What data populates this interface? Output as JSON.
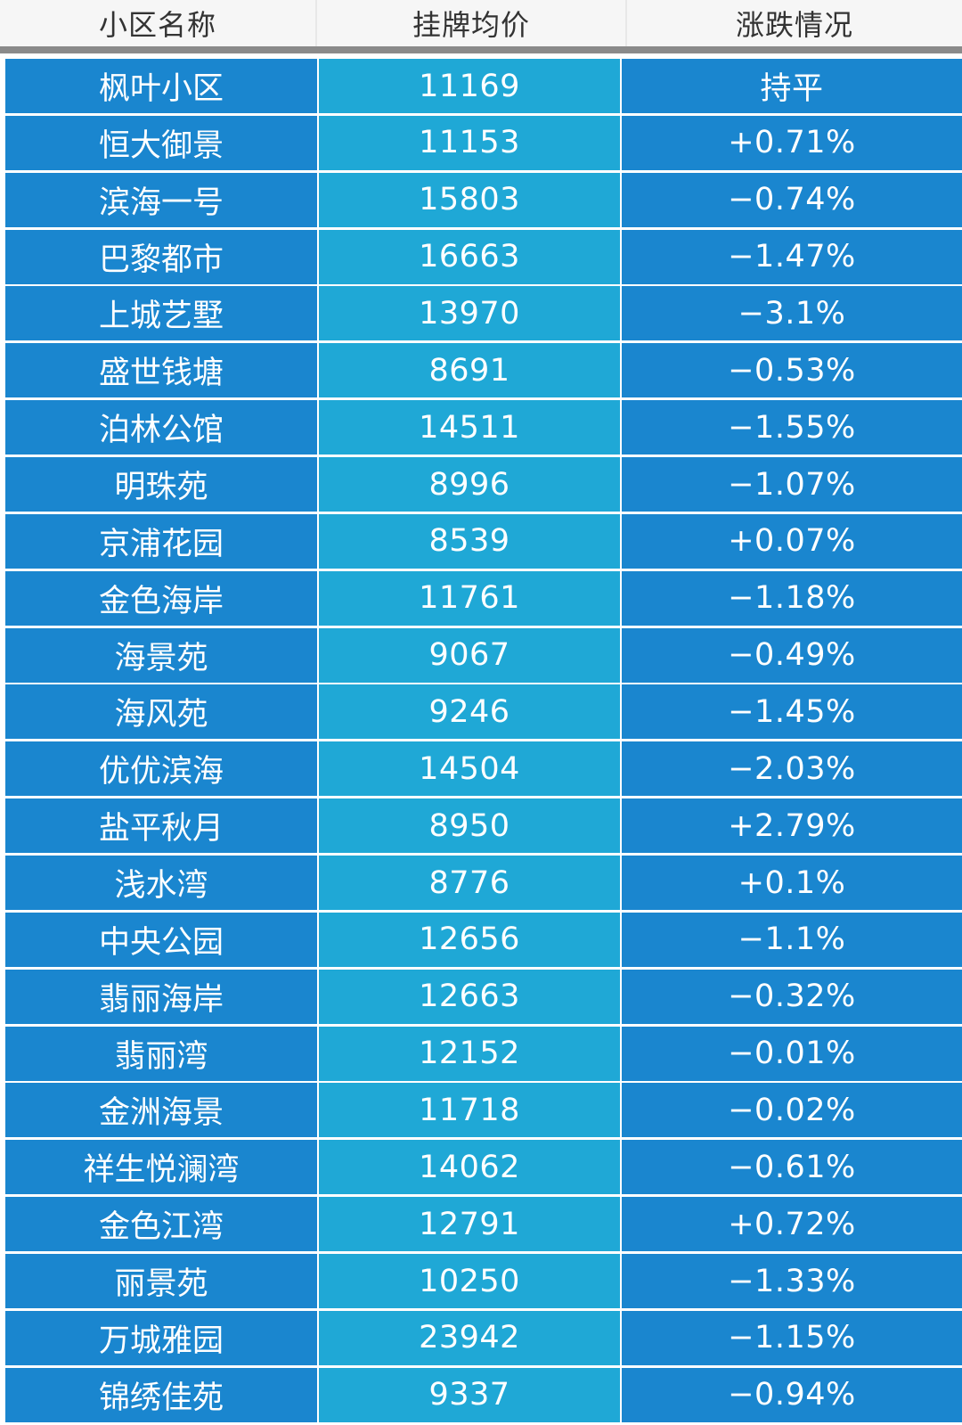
{
  "header": {
    "col_name": "小区名称",
    "col_price": "挂牌均价",
    "col_change": "涨跌情况"
  },
  "rows": [
    {
      "name": "枫叶小区",
      "price": "11169",
      "change": "持平"
    },
    {
      "name": "恒大御景",
      "price": "11153",
      "change": "+0.71%"
    },
    {
      "name": "滨海一号",
      "price": "15803",
      "change": "−0.74%"
    },
    {
      "name": "巴黎都市",
      "price": "16663",
      "change": "−1.47%"
    },
    {
      "name": "上城艺墅",
      "price": "13970",
      "change": "−3.1%"
    },
    {
      "name": "盛世钱塘",
      "price": "8691",
      "change": "−0.53%"
    },
    {
      "name": "泊林公馆",
      "price": "14511",
      "change": "−1.55%"
    },
    {
      "name": "明珠苑",
      "price": "8996",
      "change": "−1.07%"
    },
    {
      "name": "京浦花园",
      "price": "8539",
      "change": "+0.07%"
    },
    {
      "name": "金色海岸",
      "price": "11761",
      "change": "−1.18%"
    },
    {
      "name": "海景苑",
      "price": "9067",
      "change": "−0.49%"
    },
    {
      "name": "海风苑",
      "price": "9246",
      "change": "−1.45%"
    },
    {
      "name": "优优滨海",
      "price": "14504",
      "change": "−2.03%"
    },
    {
      "name": "盐平秋月",
      "price": "8950",
      "change": "+2.79%"
    },
    {
      "name": "浅水湾",
      "price": "8776",
      "change": "+0.1%"
    },
    {
      "name": "中央公园",
      "price": "12656",
      "change": "−1.1%"
    },
    {
      "name": "翡丽海岸",
      "price": "12663",
      "change": "−0.32%"
    },
    {
      "name": "翡丽湾",
      "price": "12152",
      "change": "−0.01%"
    },
    {
      "name": "金洲海景",
      "price": "11718",
      "change": "−0.02%"
    },
    {
      "name": "祥生悦澜湾",
      "price": "14062",
      "change": "−0.61%"
    },
    {
      "name": "金色江湾",
      "price": "12791",
      "change": "+0.72%"
    },
    {
      "name": "丽景苑",
      "price": "10250",
      "change": "−1.33%"
    },
    {
      "name": "万城雅园",
      "price": "23942",
      "change": "−1.15%"
    },
    {
      "name": "锦绣佳苑",
      "price": "9337",
      "change": "−0.94%"
    }
  ]
}
